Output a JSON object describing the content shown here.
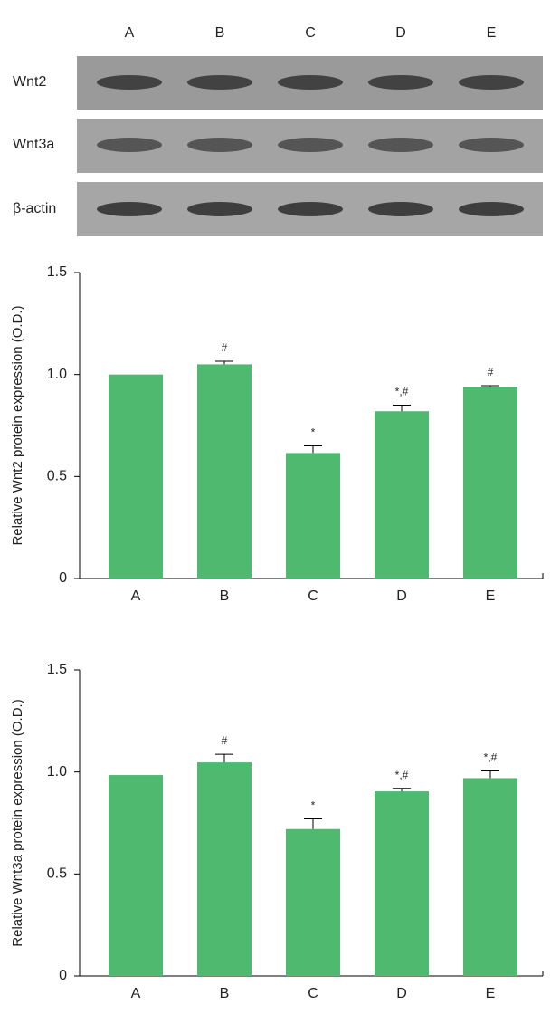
{
  "blot": {
    "lanes": [
      "A",
      "B",
      "C",
      "D",
      "E"
    ],
    "rows": [
      "Wnt2",
      "Wnt3a",
      "β-actin"
    ]
  },
  "chart_data": [
    {
      "type": "bar",
      "ylabel": "Relative Wnt2 protein expression (O.D.)",
      "categories": [
        "A",
        "B",
        "C",
        "D",
        "E"
      ],
      "values": [
        1.0,
        1.05,
        0.615,
        0.82,
        0.94
      ],
      "errors": [
        null,
        0.015,
        0.035,
        0.03,
        0.005
      ],
      "annotations": [
        null,
        "#",
        "*",
        "*,#",
        "#"
      ],
      "color": "#4fba6f",
      "ylim": [
        0,
        1.5
      ],
      "yticks": [
        0,
        0.5,
        {
          "value": 1,
          "label": "1.0"
        },
        1.5
      ]
    },
    {
      "type": "bar",
      "ylabel": "Relative Wnt3a protein expression (O.D.)",
      "categories": [
        "A",
        "B",
        "C",
        "D",
        "E"
      ],
      "values": [
        0.985,
        1.047,
        0.72,
        0.905,
        0.97
      ],
      "errors": [
        null,
        0.04,
        0.05,
        0.015,
        0.035
      ],
      "annotations": [
        null,
        "#",
        "*",
        "*,#",
        "*,#"
      ],
      "color": "#4fba6f",
      "ylim": [
        0,
        1.5
      ],
      "yticks": [
        0,
        0.5,
        {
          "value": 1,
          "label": "1.0"
        },
        1.5
      ]
    }
  ]
}
